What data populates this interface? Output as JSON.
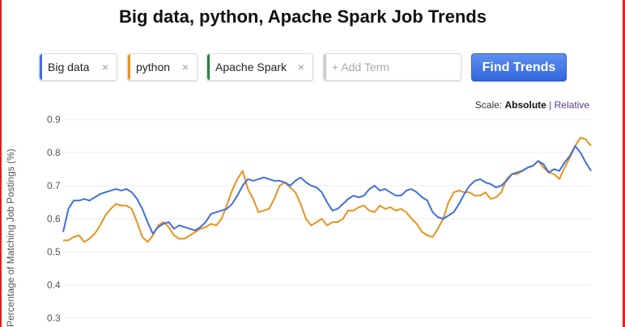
{
  "title": "Big data, python, Apache Spark Job Trends",
  "terms": [
    {
      "label": "Big data",
      "color": "#3f6fdc"
    },
    {
      "label": "python",
      "color": "#e8921e"
    },
    {
      "label": "Apache Spark",
      "color": "#2e7d46"
    }
  ],
  "remove_glyph": "×",
  "add_term_placeholder": "+ Add Term",
  "find_button": "Find Trends",
  "scale": {
    "label": "Scale:",
    "absolute": "Absolute",
    "separator": "|",
    "relative": "Relative"
  },
  "chart_data": {
    "type": "line",
    "ylabel": "Percentage of Matching Job Postings (%)",
    "ylim": [
      0.3,
      0.9
    ],
    "yticks": [
      "0.9",
      "0.8",
      "0.7",
      "0.6",
      "0.5",
      "0.4",
      "0.3"
    ],
    "grid": true,
    "x": [
      0,
      1,
      2,
      3,
      4,
      5,
      6,
      7,
      8,
      9,
      10,
      11,
      12,
      13,
      14,
      15,
      16,
      17,
      18,
      19,
      20,
      21,
      22,
      23,
      24,
      25,
      26,
      27,
      28,
      29,
      30,
      31,
      32,
      33,
      34,
      35,
      36,
      37,
      38,
      39,
      40,
      41,
      42,
      43,
      44,
      45,
      46,
      47,
      48,
      49,
      50,
      51,
      52,
      53,
      54,
      55,
      56,
      57,
      58,
      59,
      60,
      61,
      62,
      63,
      64,
      65,
      66,
      67,
      68,
      69,
      70,
      71,
      72,
      73,
      74,
      75,
      76,
      77,
      78,
      79,
      80,
      81,
      82,
      83,
      84,
      85,
      86,
      87,
      88,
      89,
      90,
      91,
      92,
      93,
      94,
      95,
      96,
      97,
      98,
      99,
      100
    ],
    "series": [
      {
        "name": "Big data",
        "color": "#3f6fdc",
        "values": [
          0.56,
          0.63,
          0.655,
          0.655,
          0.66,
          0.655,
          0.665,
          0.675,
          0.68,
          0.685,
          0.69,
          0.685,
          0.69,
          0.68,
          0.66,
          0.63,
          0.59,
          0.555,
          0.575,
          0.585,
          0.59,
          0.57,
          0.58,
          0.575,
          0.57,
          0.565,
          0.575,
          0.59,
          0.615,
          0.62,
          0.625,
          0.63,
          0.645,
          0.67,
          0.7,
          0.72,
          0.715,
          0.72,
          0.725,
          0.72,
          0.715,
          0.715,
          0.71,
          0.7,
          0.715,
          0.725,
          0.71,
          0.7,
          0.695,
          0.68,
          0.65,
          0.625,
          0.63,
          0.645,
          0.66,
          0.67,
          0.665,
          0.67,
          0.69,
          0.7,
          0.685,
          0.69,
          0.68,
          0.67,
          0.67,
          0.685,
          0.69,
          0.68,
          0.665,
          0.655,
          0.62,
          0.605,
          0.6,
          0.61,
          0.62,
          0.645,
          0.675,
          0.7,
          0.715,
          0.72,
          0.71,
          0.705,
          0.695,
          0.7,
          0.715,
          0.735,
          0.74,
          0.745,
          0.755,
          0.76,
          0.775,
          0.765,
          0.74,
          0.75,
          0.745,
          0.77,
          0.79,
          0.82,
          0.8,
          0.77,
          0.745
        ]
      },
      {
        "name": "python",
        "color": "#e8921e",
        "values": [
          0.535,
          0.535,
          0.545,
          0.55,
          0.53,
          0.54,
          0.555,
          0.58,
          0.61,
          0.63,
          0.645,
          0.64,
          0.64,
          0.63,
          0.59,
          0.545,
          0.53,
          0.55,
          0.58,
          0.59,
          0.575,
          0.55,
          0.54,
          0.54,
          0.55,
          0.56,
          0.57,
          0.575,
          0.585,
          0.58,
          0.6,
          0.64,
          0.685,
          0.72,
          0.745,
          0.69,
          0.66,
          0.62,
          0.625,
          0.63,
          0.66,
          0.7,
          0.71,
          0.695,
          0.68,
          0.645,
          0.6,
          0.58,
          0.59,
          0.6,
          0.58,
          0.59,
          0.59,
          0.6,
          0.625,
          0.625,
          0.635,
          0.64,
          0.625,
          0.62,
          0.64,
          0.63,
          0.635,
          0.625,
          0.63,
          0.62,
          0.6,
          0.585,
          0.56,
          0.55,
          0.545,
          0.57,
          0.6,
          0.65,
          0.68,
          0.685,
          0.68,
          0.68,
          0.67,
          0.67,
          0.68,
          0.66,
          0.665,
          0.68,
          0.72,
          0.735,
          0.735,
          0.745,
          0.755,
          0.76,
          0.775,
          0.755,
          0.74,
          0.735,
          0.72,
          0.755,
          0.785,
          0.82,
          0.845,
          0.84,
          0.82
        ]
      }
    ]
  }
}
